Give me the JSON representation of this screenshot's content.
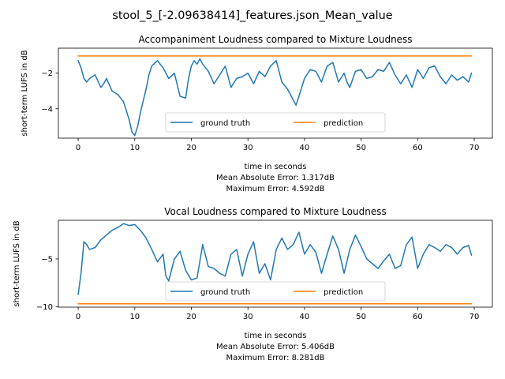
{
  "figure": {
    "suptitle": "stool_5_[-2.09638414]_features.json_Mean_value"
  },
  "colors": {
    "ground_truth": "#1f77b4",
    "prediction": "#ff7f0e",
    "axes": "#000000",
    "legend_border": "#cccccc"
  },
  "chart_data": [
    {
      "type": "line",
      "title": "Accompaniment Loudness compared to Mixture Loudness",
      "xlabel": "time in seconds",
      "ylabel": "short-term LUFS in dB",
      "xlim": [
        -3.5,
        73.2
      ],
      "ylim": [
        -5.65,
        -0.6
      ],
      "xticks": [
        0,
        10,
        20,
        30,
        40,
        50,
        60,
        70
      ],
      "xtick_labels": [
        "0",
        "10",
        "20",
        "30",
        "40",
        "50",
        "60",
        "70"
      ],
      "yticks": [
        -4,
        -2
      ],
      "ytick_labels": [
        "−4",
        "−2"
      ],
      "grid": false,
      "legend": {
        "placement": "lower center",
        "ncol": 2
      },
      "stats": [
        "Mean Absolute Error: 1.317dB",
        "Maximum Error: 4.592dB"
      ],
      "series": [
        {
          "name": "ground truth",
          "x": [
            0,
            0.5,
            1,
            1.5,
            2,
            3,
            4,
            4.5,
            5,
            6,
            7,
            8,
            9,
            9.5,
            10,
            10.5,
            11,
            12,
            12.5,
            13,
            14,
            15,
            16,
            17,
            18,
            19,
            19.5,
            20,
            20.5,
            21,
            21.5,
            22,
            23,
            24,
            25,
            26,
            27,
            28,
            29,
            30,
            31,
            32,
            33,
            34,
            35,
            36,
            37,
            38,
            38.5,
            39,
            40,
            41,
            42,
            43,
            44,
            45,
            46,
            47,
            47.5,
            48,
            49,
            50,
            51,
            52,
            53,
            54,
            55,
            56,
            57,
            58,
            59,
            60,
            61,
            62,
            63,
            64,
            65,
            66,
            67,
            68,
            69,
            69.5
          ],
          "y": [
            -1.3,
            -1.7,
            -2.3,
            -2.5,
            -2.3,
            -2.1,
            -2.8,
            -2.6,
            -2.3,
            -3.0,
            -3.2,
            -3.6,
            -4.6,
            -5.3,
            -5.5,
            -5.0,
            -4.2,
            -2.9,
            -2.1,
            -1.6,
            -1.3,
            -1.7,
            -2.3,
            -2.0,
            -3.3,
            -3.4,
            -2.3,
            -1.6,
            -1.3,
            -1.5,
            -1.2,
            -1.5,
            -1.9,
            -2.6,
            -2.1,
            -1.6,
            -2.8,
            -2.3,
            -2.2,
            -2.0,
            -2.6,
            -1.9,
            -2.2,
            -1.6,
            -1.3,
            -2.5,
            -2.9,
            -3.5,
            -3.8,
            -3.3,
            -2.3,
            -1.8,
            -1.9,
            -2.5,
            -1.6,
            -1.4,
            -2.5,
            -2.0,
            -2.5,
            -2.8,
            -1.9,
            -1.8,
            -2.3,
            -2.2,
            -1.8,
            -1.9,
            -1.4,
            -2.1,
            -2.6,
            -2.1,
            -2.8,
            -1.8,
            -2.3,
            -1.7,
            -1.6,
            -2.2,
            -2.6,
            -2.1,
            -2.4,
            -2.2,
            -2.5,
            -2.0
          ]
        },
        {
          "name": "prediction",
          "x": [
            0,
            69.5
          ],
          "y": [
            -1.04,
            -1.04
          ]
        }
      ]
    },
    {
      "type": "line",
      "title": "Vocal Loudness compared to Mixture Loudness",
      "xlabel": "time in seconds",
      "ylabel": "short-term LUFS in dB",
      "xlim": [
        -3.5,
        73.2
      ],
      "ylim": [
        -10.05,
        -0.95
      ],
      "xticks": [
        0,
        10,
        20,
        30,
        40,
        50,
        60,
        70
      ],
      "xtick_labels": [
        "0",
        "10",
        "20",
        "30",
        "40",
        "50",
        "60",
        "70"
      ],
      "yticks": [
        -10,
        -5
      ],
      "ytick_labels": [
        "−10",
        "−5"
      ],
      "grid": false,
      "legend": {
        "placement": "lower center",
        "ncol": 2
      },
      "stats": [
        "Mean Absolute Error: 5.406dB",
        "Maximum Error: 8.281dB"
      ],
      "series": [
        {
          "name": "ground truth",
          "x": [
            0,
            0.5,
            1,
            1.5,
            2,
            3,
            4,
            5,
            6,
            7,
            8,
            9,
            10,
            11,
            12,
            13,
            14,
            15,
            15.5,
            16,
            17,
            18,
            19,
            20,
            21,
            22,
            23,
            24,
            25,
            26,
            27,
            28,
            29,
            30,
            31,
            32,
            33,
            34,
            35,
            36,
            37,
            38,
            39,
            40,
            41,
            42,
            43,
            44,
            45,
            46,
            47,
            48,
            49,
            50,
            51,
            52,
            53,
            54,
            55,
            56,
            57,
            58,
            59,
            60,
            61,
            62,
            63,
            64,
            65,
            66,
            67,
            68,
            69,
            69.5
          ],
          "y": [
            -8.7,
            -6.5,
            -3.2,
            -3.5,
            -4.0,
            -3.8,
            -3.0,
            -2.5,
            -2.0,
            -1.7,
            -1.3,
            -1.5,
            -1.4,
            -2.0,
            -2.8,
            -4.0,
            -5.3,
            -4.5,
            -6.8,
            -7.3,
            -5.0,
            -4.2,
            -6.2,
            -7.2,
            -7.0,
            -3.5,
            -5.8,
            -6.0,
            -6.5,
            -6.8,
            -4.5,
            -4.0,
            -6.8,
            -4.5,
            -3.2,
            -6.5,
            -5.5,
            -7.2,
            -4.0,
            -2.8,
            -4.0,
            -3.5,
            -2.2,
            -4.5,
            -3.5,
            -4.3,
            -6.5,
            -4.5,
            -2.6,
            -4.0,
            -6.5,
            -4.0,
            -2.5,
            -3.7,
            -5.0,
            -5.5,
            -6.0,
            -5.2,
            -4.5,
            -6.0,
            -5.7,
            -3.5,
            -2.7,
            -6.0,
            -4.5,
            -3.5,
            -3.8,
            -4.2,
            -3.5,
            -3.8,
            -4.5,
            -3.8,
            -3.6,
            -4.6
          ]
        },
        {
          "name": "prediction",
          "x": [
            0,
            69.5
          ],
          "y": [
            -9.7,
            -9.7
          ]
        }
      ]
    }
  ]
}
